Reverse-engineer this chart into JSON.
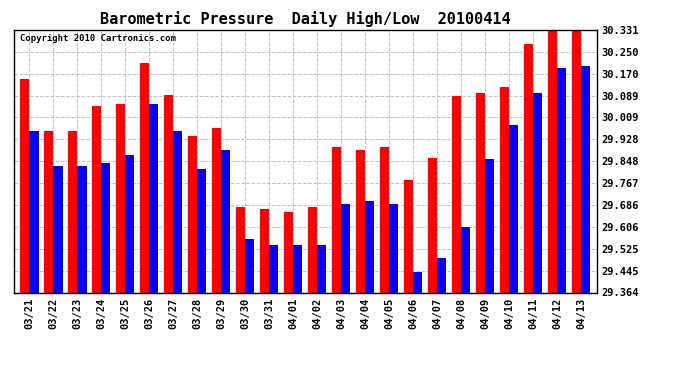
{
  "title": "Barometric Pressure  Daily High/Low  20100414",
  "copyright": "Copyright 2010 Cartronics.com",
  "categories": [
    "03/21",
    "03/22",
    "03/23",
    "03/24",
    "03/25",
    "03/26",
    "03/27",
    "03/28",
    "03/29",
    "03/30",
    "03/31",
    "04/01",
    "04/02",
    "04/03",
    "04/04",
    "04/05",
    "04/06",
    "04/07",
    "04/08",
    "04/09",
    "04/10",
    "04/11",
    "04/12",
    "04/13"
  ],
  "high_values": [
    30.15,
    29.96,
    29.96,
    30.05,
    30.06,
    30.21,
    30.09,
    29.94,
    29.97,
    29.68,
    29.67,
    29.66,
    29.68,
    29.9,
    29.89,
    29.9,
    29.78,
    29.86,
    30.089,
    30.1,
    30.12,
    30.28,
    30.331,
    30.331
  ],
  "low_values": [
    29.96,
    29.83,
    29.83,
    29.84,
    29.87,
    30.06,
    29.96,
    29.82,
    29.89,
    29.56,
    29.54,
    29.54,
    29.54,
    29.69,
    29.7,
    29.69,
    29.44,
    29.49,
    29.606,
    29.855,
    29.98,
    30.1,
    30.19,
    30.2
  ],
  "bar_color_high": "#FF0000",
  "bar_color_low": "#0000FF",
  "background_color": "#FFFFFF",
  "plot_bg_color": "#FFFFFF",
  "grid_color": "#C0C0C0",
  "yticks": [
    29.364,
    29.445,
    29.525,
    29.606,
    29.686,
    29.767,
    29.848,
    29.928,
    30.009,
    30.089,
    30.17,
    30.25,
    30.331
  ],
  "ymin": 29.364,
  "ymax": 30.331,
  "title_fontsize": 11,
  "tick_fontsize": 7.5,
  "copyright_fontsize": 6.5
}
